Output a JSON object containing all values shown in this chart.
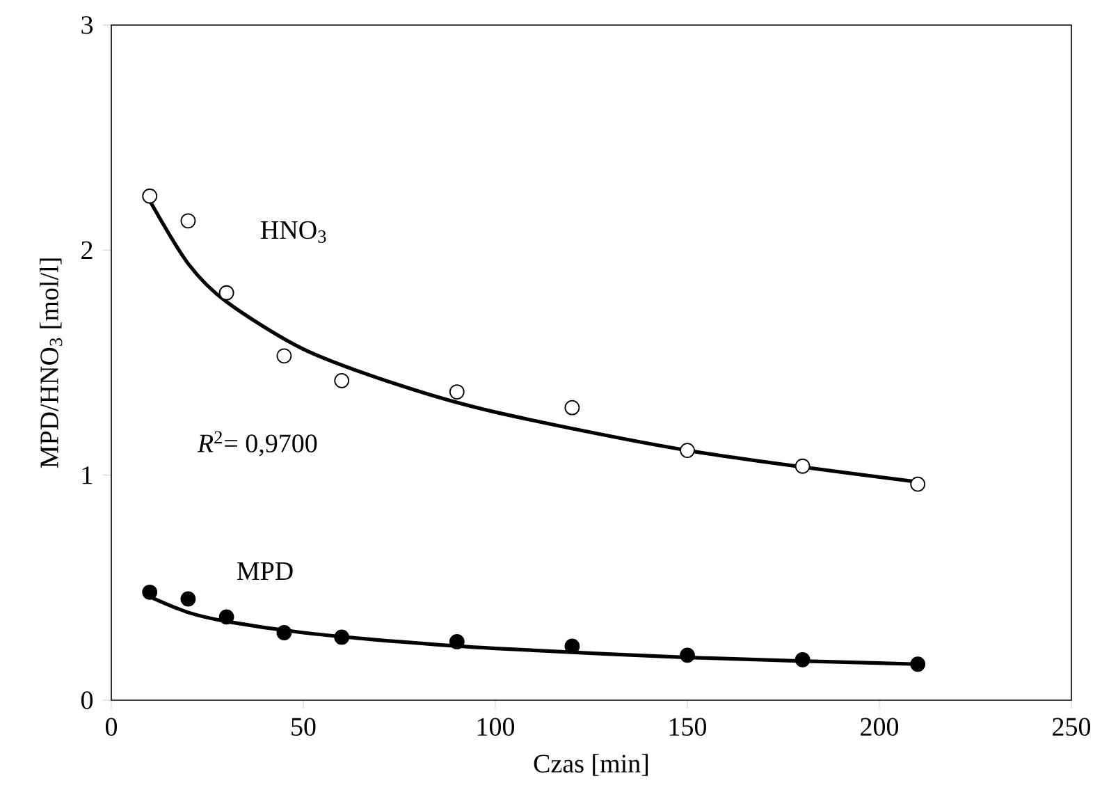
{
  "chart_data": {
    "type": "scatter",
    "xlabel": "Czas [min]",
    "ylabel": "MPD/HNO$_{3}$ [mol/l]",
    "xlim": [
      0,
      250
    ],
    "xticks": [
      0,
      50,
      100,
      150,
      200,
      250
    ],
    "ylim": [
      0,
      3
    ],
    "yticks": [
      0,
      1,
      2,
      3
    ],
    "grid": false,
    "series": [
      {
        "name": "HNO$_{3}$",
        "marker": "circle",
        "color": "#000000",
        "x": [
          10,
          20,
          30,
          45,
          60,
          90,
          120,
          150,
          180,
          210
        ],
        "values": [
          2.24,
          2.13,
          1.81,
          1.53,
          1.42,
          1.37,
          1.3,
          1.11,
          1.04,
          0.96
        ]
      },
      {
        "name": "MPD",
        "marker": "circle",
        "color": "#000000",
        "x": [
          10,
          20,
          30,
          45,
          60,
          90,
          120,
          150,
          180,
          210
        ],
        "values": [
          0.48,
          0.45,
          0.37,
          0.3,
          0.28,
          0.26,
          0.24,
          0.2,
          0.18,
          0.16
        ]
      },
      {
        "type": "line",
        "color": "#000000",
        "x": [
          10,
          20,
          30,
          50,
          75,
          100,
          150,
          210
        ],
        "values": [
          2.22,
          1.94,
          1.77,
          1.56,
          1.4,
          1.28,
          1.11,
          0.97
        ]
      },
      {
        "type": "line",
        "color": "#000000",
        "x": [
          10,
          20,
          30,
          50,
          75,
          100,
          150,
          210
        ],
        "values": [
          0.46,
          0.39,
          0.35,
          0.3,
          0.26,
          0.23,
          0.19,
          0.16
        ]
      }
    ],
    "annotations": [
      "*R*$^{2}$= 0,9700"
    ]
  }
}
